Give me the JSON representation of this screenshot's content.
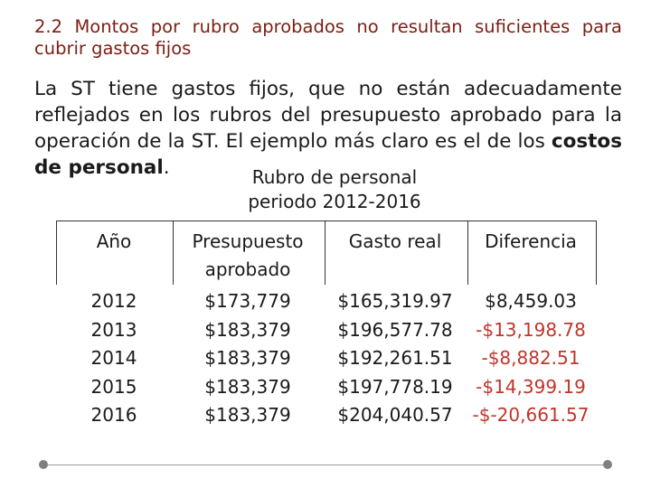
{
  "heading": "2.2 Montos por rubro aprobados no resultan suficientes para cubrir gastos fijos",
  "paragraph": {
    "part1": "La ST tiene gastos fijos, que no están adecuadamente reflejados en los rubros del presupuesto aprobado para la operación de la ST. El ejemplo más claro es el de los ",
    "bold": "costos de personal",
    "part2": "."
  },
  "table_title": {
    "line1": "Rubro de personal",
    "line2": "periodo 2012-2016"
  },
  "table": {
    "headers": {
      "year": "Año",
      "budget_line1": "Presupuesto",
      "budget_line2": "aprobado",
      "actual": "Gasto real",
      "difference": "Diferencia"
    },
    "rows": [
      {
        "year": "2012",
        "budget": "$173,779",
        "actual": "$165,319.97",
        "difference": "$8,459.03",
        "negative": false
      },
      {
        "year": "2013",
        "budget": "$183,379",
        "actual": "$196,577.78",
        "difference": "-$13,198.78",
        "negative": true
      },
      {
        "year": "2014",
        "budget": "$183,379",
        "actual": "$192,261.51",
        "difference": "-$8,882.51",
        "negative": true
      },
      {
        "year": "2015",
        "budget": "$183,379",
        "actual": "$197,778.19",
        "difference": "-$14,399.19",
        "negative": true
      },
      {
        "year": "2016",
        "budget": "$183,379",
        "actual": "$204,040.57",
        "difference": "-$-20,661.57",
        "negative": true
      }
    ]
  },
  "colors": {
    "heading": "#7a1f14",
    "negative": "#c0352b"
  }
}
